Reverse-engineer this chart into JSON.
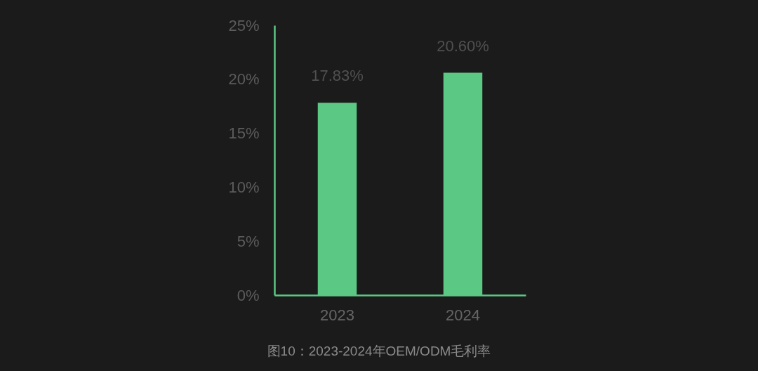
{
  "chart_data": {
    "type": "bar",
    "categories": [
      "2023",
      "2024"
    ],
    "values": [
      17.83,
      20.6
    ],
    "value_labels": [
      "17.83%",
      "20.60%"
    ],
    "color": "#5bc884",
    "ylim": [
      0,
      25
    ],
    "yticks": [
      {
        "value": 0,
        "label": "0%"
      },
      {
        "value": 5,
        "label": "5%"
      },
      {
        "value": 10,
        "label": "10%"
      },
      {
        "value": 15,
        "label": "15%"
      },
      {
        "value": 20,
        "label": "20%"
      },
      {
        "value": 25,
        "label": "25%"
      }
    ],
    "annotations": [
      "图10：2023-2024年OEM/ODM毛利率"
    ]
  }
}
